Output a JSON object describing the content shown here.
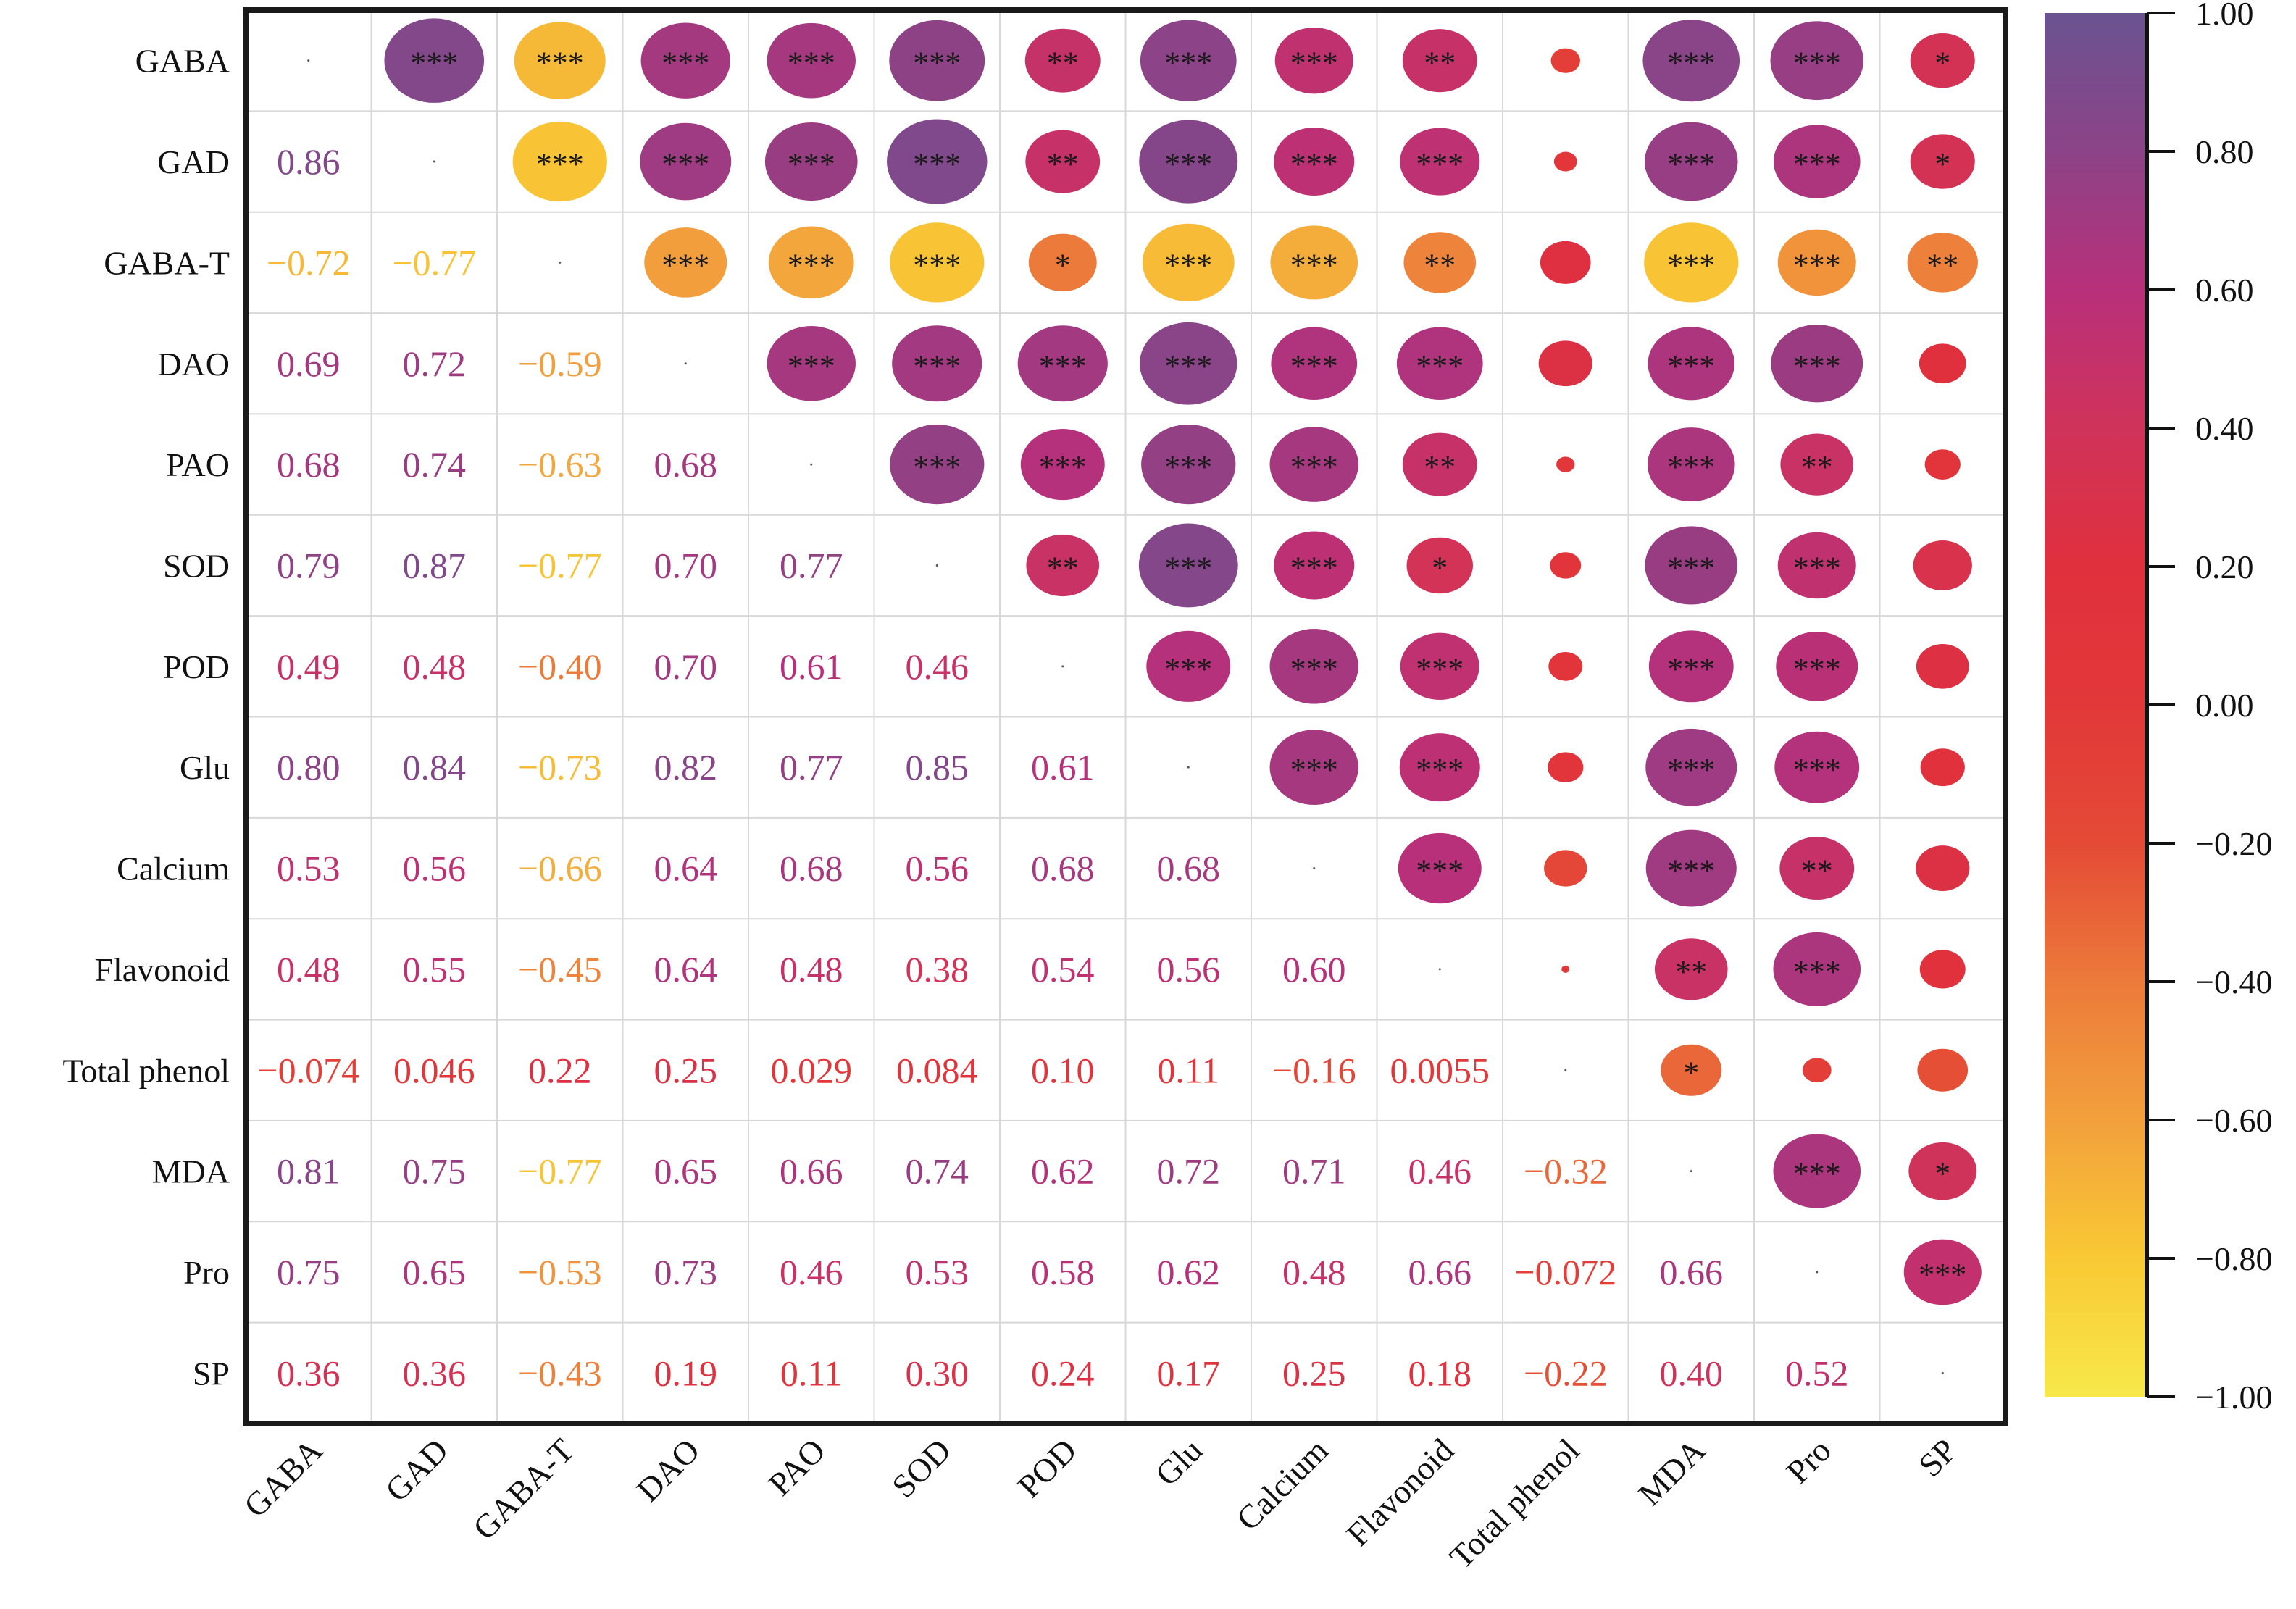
{
  "chart_data": {
    "type": "heatmap",
    "subtype": "correlation-matrix (lower: coefficients, upper: circles with significance)",
    "title": "",
    "xlabel": "",
    "ylabel": "",
    "variables": [
      "GABA",
      "GAD",
      "GABA-T",
      "DAO",
      "PAO",
      "SOD",
      "POD",
      "Glu",
      "Calcium",
      "Flavonoid",
      "Total phenol",
      "MDA",
      "Pro",
      "SP"
    ],
    "value_labels": [
      [
        null,
        null,
        null,
        null,
        null,
        null,
        null,
        null,
        null,
        null,
        null,
        null,
        null,
        null
      ],
      [
        "0.86",
        null,
        null,
        null,
        null,
        null,
        null,
        null,
        null,
        null,
        null,
        null,
        null,
        null
      ],
      [
        "-0.72",
        "-0.77",
        null,
        null,
        null,
        null,
        null,
        null,
        null,
        null,
        null,
        null,
        null,
        null
      ],
      [
        "0.69",
        "0.72",
        "-0.59",
        null,
        null,
        null,
        null,
        null,
        null,
        null,
        null,
        null,
        null,
        null
      ],
      [
        "0.68",
        "0.74",
        "-0.63",
        "0.68",
        null,
        null,
        null,
        null,
        null,
        null,
        null,
        null,
        null,
        null
      ],
      [
        "0.79",
        "0.87",
        "-0.77",
        "0.70",
        "0.77",
        null,
        null,
        null,
        null,
        null,
        null,
        null,
        null,
        null
      ],
      [
        "0.49",
        "0.48",
        "-0.40",
        "0.70",
        "0.61",
        "0.46",
        null,
        null,
        null,
        null,
        null,
        null,
        null,
        null
      ],
      [
        "0.80",
        "0.84",
        "-0.73",
        "0.82",
        "0.77",
        "0.85",
        "0.61",
        null,
        null,
        null,
        null,
        null,
        null,
        null
      ],
      [
        "0.53",
        "0.56",
        "-0.66",
        "0.64",
        "0.68",
        "0.56",
        "0.68",
        "0.68",
        null,
        null,
        null,
        null,
        null,
        null
      ],
      [
        "0.48",
        "0.55",
        "-0.45",
        "0.64",
        "0.48",
        "0.38",
        "0.54",
        "0.56",
        "0.60",
        null,
        null,
        null,
        null,
        null
      ],
      [
        "-0.074",
        "0.046",
        "0.22",
        "0.25",
        "0.029",
        "0.084",
        "0.10",
        "0.11",
        "-0.16",
        "0.0055",
        null,
        null,
        null,
        null
      ],
      [
        "0.81",
        "0.75",
        "-0.77",
        "0.65",
        "0.66",
        "0.74",
        "0.62",
        "0.72",
        "0.71",
        "0.46",
        "-0.32",
        null,
        null,
        null
      ],
      [
        "0.75",
        "0.65",
        "-0.53",
        "0.73",
        "0.46",
        "0.53",
        "0.58",
        "0.62",
        "0.48",
        "0.66",
        "-0.072",
        "0.66",
        null,
        null
      ],
      [
        "0.36",
        "0.36",
        "-0.43",
        "0.19",
        "0.11",
        "0.30",
        "0.24",
        "0.17",
        "0.25",
        "0.18",
        "-0.22",
        "0.40",
        "0.52",
        null
      ]
    ],
    "significance_upper": [
      [
        "",
        "***",
        "***",
        "***",
        "***",
        "***",
        "**",
        "***",
        "***",
        "**",
        "",
        "***",
        "***",
        "*"
      ],
      [
        "",
        "",
        "***",
        "***",
        "***",
        "***",
        "**",
        "***",
        "***",
        "***",
        "",
        "***",
        "***",
        "*"
      ],
      [
        "",
        "",
        "",
        "***",
        "***",
        "***",
        "*",
        "***",
        "***",
        "**",
        "",
        "***",
        "***",
        "**"
      ],
      [
        "",
        "",
        "",
        "",
        "***",
        "***",
        "***",
        "***",
        "***",
        "***",
        "",
        "***",
        "***",
        ""
      ],
      [
        "",
        "",
        "",
        "",
        "",
        "***",
        "***",
        "***",
        "***",
        "**",
        "",
        "***",
        "**",
        ""
      ],
      [
        "",
        "",
        "",
        "",
        "",
        "",
        "**",
        "***",
        "***",
        "*",
        "",
        "***",
        "***",
        ""
      ],
      [
        "",
        "",
        "",
        "",
        "",
        "",
        "",
        "***",
        "***",
        "***",
        "",
        "***",
        "***",
        ""
      ],
      [
        "",
        "",
        "",
        "",
        "",
        "",
        "",
        "",
        "***",
        "***",
        "",
        "***",
        "***",
        ""
      ],
      [
        "",
        "",
        "",
        "",
        "",
        "",
        "",
        "",
        "",
        "***",
        "",
        "***",
        "**",
        ""
      ],
      [
        "",
        "",
        "",
        "",
        "",
        "",
        "",
        "",
        "",
        "",
        "",
        "**",
        "***",
        ""
      ],
      [
        "",
        "",
        "",
        "",
        "",
        "",
        "",
        "",
        "",
        "",
        "",
        "*",
        "",
        ""
      ],
      [
        "",
        "",
        "",
        "",
        "",
        "",
        "",
        "",
        "",
        "",
        "",
        "",
        "***",
        "*"
      ],
      [
        "",
        "",
        "",
        "",
        "",
        "",
        "",
        "",
        "",
        "",
        "",
        "",
        "",
        "***"
      ],
      [
        "",
        "",
        "",
        "",
        "",
        "",
        "",
        "",
        "",
        "",
        "",
        "",
        "",
        ""
      ]
    ],
    "colorbar": {
      "range": [
        -1.0,
        1.0
      ],
      "ticks": [
        "1.00",
        "0.80",
        "0.60",
        "0.40",
        "0.20",
        "0.00",
        "-0.20",
        "-0.40",
        "-0.60",
        "-0.80",
        "-1.00"
      ],
      "tick_values": [
        1.0,
        0.8,
        0.6,
        0.4,
        0.2,
        0.0,
        -0.2,
        -0.4,
        -0.6,
        -0.8,
        -1.0
      ],
      "colormap_stops": [
        {
          "value": -1.0,
          "color": "#f7e84a"
        },
        {
          "value": -0.8,
          "color": "#f9c934"
        },
        {
          "value": -0.6,
          "color": "#f2a03c"
        },
        {
          "value": -0.4,
          "color": "#ec7a3a"
        },
        {
          "value": -0.2,
          "color": "#e44a36"
        },
        {
          "value": 0.0,
          "color": "#e23839"
        },
        {
          "value": 0.2,
          "color": "#e0303d"
        },
        {
          "value": 0.4,
          "color": "#d0335a"
        },
        {
          "value": 0.6,
          "color": "#b8307a"
        },
        {
          "value": 0.8,
          "color": "#8c4387"
        },
        {
          "value": 1.0,
          "color": "#6a5391"
        }
      ],
      "placement": "right"
    },
    "grid": true,
    "legend": "none"
  }
}
